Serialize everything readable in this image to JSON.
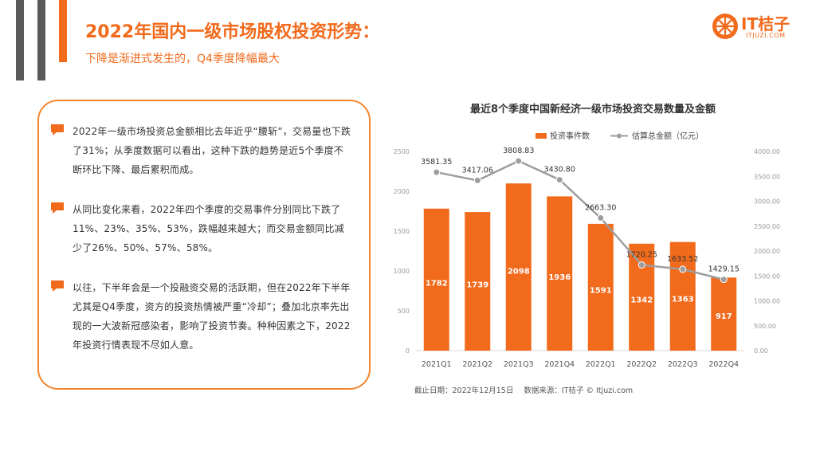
{
  "header": {
    "title": "2022年国内一级市场股权投资形势：",
    "subtitle": "下降是渐进式发生的，Q4季度降幅最大"
  },
  "logo": {
    "name": "IT桔子",
    "domain": "ITJUZI.COM"
  },
  "colors": {
    "accent": "#f26a1b",
    "bar": "#f26a1b",
    "line": "#9e9e9e",
    "dark_bar": "#595959"
  },
  "bullets": [
    "2022年一级市场投资总金额相比去年近乎“腰斩”，交易量也下跌了31%；从季度数据可以看出，这种下跌的趋势是近5个季度不断环比下降、最后累积而成。",
    "从同比变化来看，2022年四个季度的交易事件分别同比下跌了11%、23%、35%、53%，跌幅越来越大；而交易金额同比减少了26%、50%、57%、58%。",
    "以往，下半年会是一个投融资交易的活跃期，但在2022年下半年尤其是Q4季度，资方的投资热情被严重“冷却”；叠加北京率先出现的一大波新冠感染者，影响了投资节奏。种种因素之下，2022年投资行情表现不尽如人意。"
  ],
  "chart_data": {
    "type": "bar",
    "title": "最近8个季度中国新经济一级市场投资交易数量及金额",
    "categories": [
      "2021Q1",
      "2021Q2",
      "2021Q3",
      "2021Q4",
      "2022Q1",
      "2022Q2",
      "2022Q3",
      "2022Q4"
    ],
    "series": [
      {
        "name": "投资事件数",
        "type": "bar",
        "axis": "left",
        "values": [
          1782,
          1739,
          2098,
          1936,
          1591,
          1342,
          1363,
          917
        ]
      },
      {
        "name": "估算总金额（亿元）",
        "type": "line",
        "axis": "right",
        "values": [
          3581.35,
          3417.06,
          3808.83,
          3430.8,
          2663.3,
          1720.25,
          1633.52,
          1429.15
        ]
      }
    ],
    "value_labels": {
      "bar": [
        "1782",
        "1739",
        "2098",
        "1936",
        "1591",
        "1342",
        "1363",
        "917"
      ],
      "line": [
        "3581.35",
        "3417.06",
        "3808.83",
        "3430.80",
        "2663.30",
        "1720.25",
        "1633.52",
        "1429.15"
      ]
    },
    "ylim_left": [
      0,
      2500
    ],
    "yticks_left": [
      "0",
      "500",
      "1000",
      "1500",
      "2000",
      "2500"
    ],
    "ylim_right": [
      0,
      4000
    ],
    "yticks_right": [
      "0.00",
      "500.00",
      "1000.00",
      "1500.00",
      "2000.00",
      "2500.00",
      "3000.00",
      "3500.00",
      "4000.00"
    ],
    "legend_position": "top"
  },
  "footer": {
    "date": "截止日期：2022年12月15日",
    "source": "数据来源：IT桔子 © Itjuzi.com"
  }
}
